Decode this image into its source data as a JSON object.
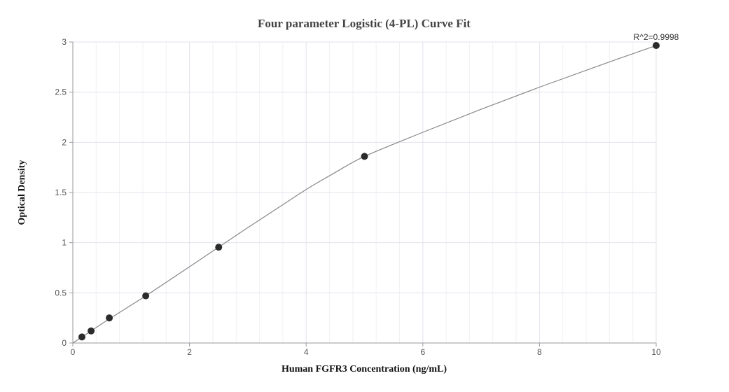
{
  "chart_data": {
    "type": "scatter",
    "title": "Four parameter Logistic (4-PL) Curve Fit",
    "xlabel": "Human FGFR3 Concentration (ng/mL)",
    "ylabel": "Optical Density",
    "xlim": [
      0,
      10
    ],
    "ylim": [
      0,
      3
    ],
    "x_ticks": [
      0,
      2,
      4,
      6,
      8,
      10
    ],
    "y_ticks": [
      0,
      0.5,
      1,
      1.5,
      2,
      2.5,
      3
    ],
    "x_tick_labels": [
      "0",
      "2",
      "4",
      "6",
      "8",
      "10"
    ],
    "y_tick_labels": [
      "0",
      "0.5",
      "1",
      "1.5",
      "2",
      "2.5",
      "3"
    ],
    "grid": true,
    "points": [
      {
        "x": 0.156,
        "y": 0.06
      },
      {
        "x": 0.313,
        "y": 0.12
      },
      {
        "x": 0.625,
        "y": 0.25
      },
      {
        "x": 1.25,
        "y": 0.47
      },
      {
        "x": 2.5,
        "y": 0.955
      },
      {
        "x": 5,
        "y": 1.86
      },
      {
        "x": 10,
        "y": 2.965
      }
    ],
    "fit_curve": [
      [
        0,
        0
      ],
      [
        0.156,
        0.06
      ],
      [
        0.313,
        0.12
      ],
      [
        0.625,
        0.24
      ],
      [
        1.25,
        0.47
      ],
      [
        2,
        0.76
      ],
      [
        2.5,
        0.955
      ],
      [
        3,
        1.15
      ],
      [
        3.5,
        1.34
      ],
      [
        4,
        1.53
      ],
      [
        4.5,
        1.7
      ],
      [
        5,
        1.86
      ],
      [
        6,
        2.1
      ],
      [
        7,
        2.33
      ],
      [
        8,
        2.55
      ],
      [
        9,
        2.76
      ],
      [
        10,
        2.965
      ]
    ],
    "annotation": "R^2=0.9998",
    "colors": {
      "points": "#2b2b2b",
      "curve": "#888888",
      "grid": "#e3e3ee",
      "axis": "#999999"
    }
  }
}
